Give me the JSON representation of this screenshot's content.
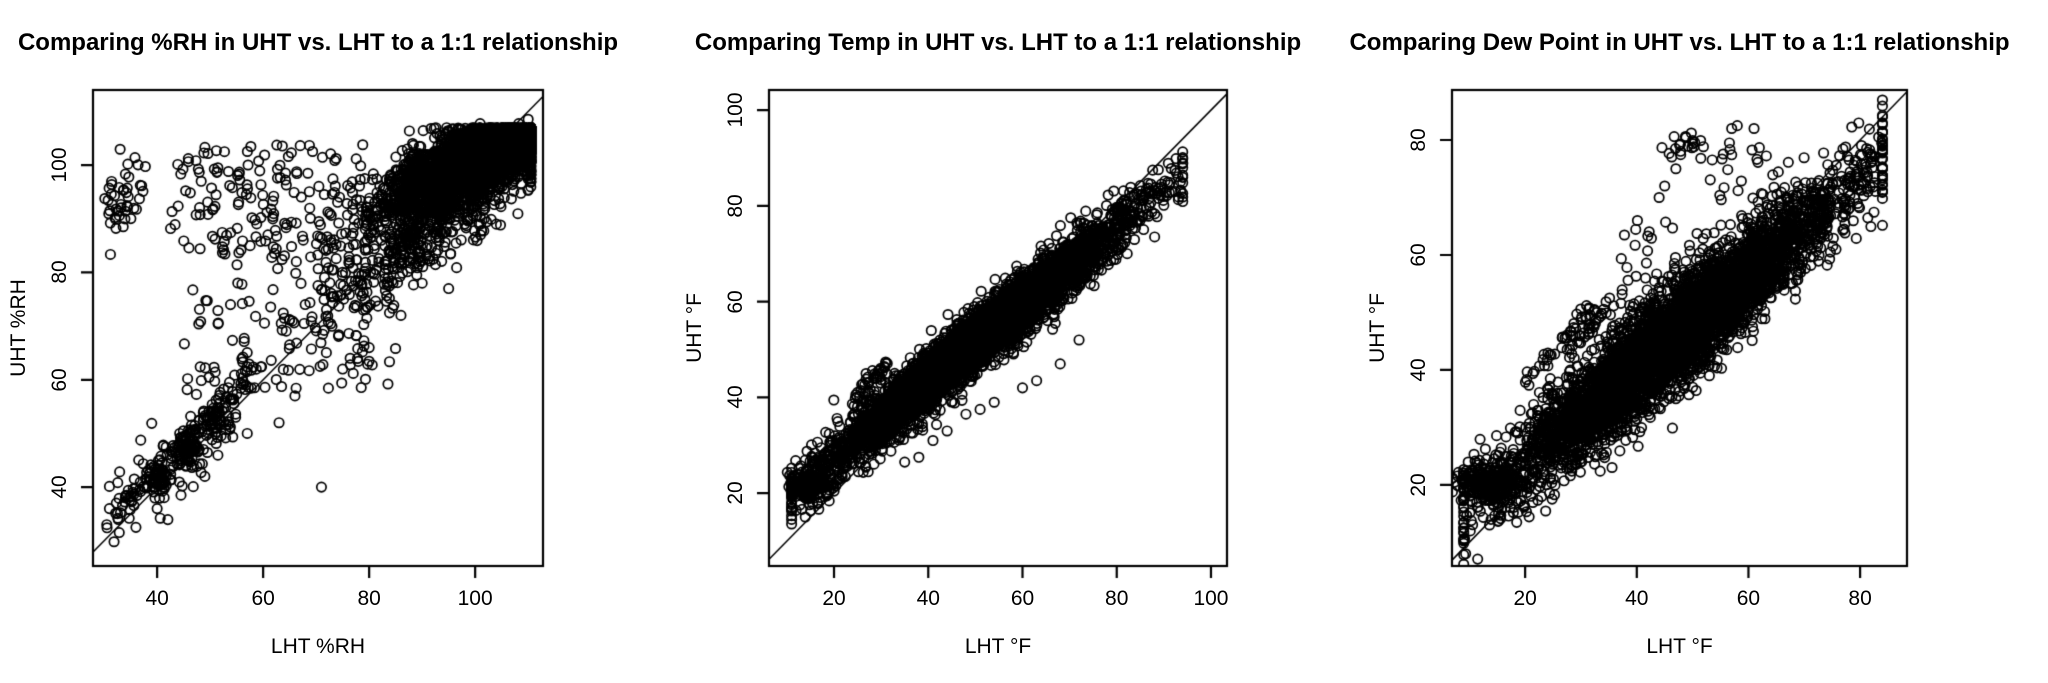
{
  "figure": {
    "background_color": "#ffffff",
    "marker_color": "#000000",
    "axis_color": "#000000",
    "marker_shape": "open-circle"
  },
  "chart_data": [
    {
      "type": "scatter",
      "title": "Comparing %RH in UHT vs. LHT to a 1:1 relationship",
      "xlabel": "LHT %RH",
      "ylabel": "UHT %RH",
      "xlim": [
        27.9,
        112.8
      ],
      "ylim": [
        25.3,
        114.0
      ],
      "xticks": [
        {
          "v": 40,
          "label": "40"
        },
        {
          "v": 60,
          "label": "60"
        },
        {
          "v": 80,
          "label": "80"
        },
        {
          "v": 100,
          "label": "100"
        }
      ],
      "yticks": [
        {
          "v": 40,
          "label": "40"
        },
        {
          "v": 60,
          "label": "60"
        },
        {
          "v": 80,
          "label": "80"
        },
        {
          "v": 100,
          "label": "100"
        }
      ],
      "identity_line": true,
      "grid": false,
      "legend": "none",
      "seed": 11,
      "clusters": [
        {
          "kind": "nband",
          "n": 2600,
          "xmean": 100,
          "xsd": 9,
          "xmin": 62,
          "xmax": 110.5,
          "slope": 0.45,
          "intercept": 56,
          "sd": 3.5,
          "ymax": 107
        },
        {
          "kind": "nband",
          "n": 900,
          "xmean": 103,
          "xsd": 5,
          "xmin": 80,
          "xmax": 110.5,
          "slope": 0.3,
          "intercept": 73,
          "sd": 1.8,
          "ymax": 107
        },
        {
          "kind": "nband",
          "n": 500,
          "xmean": 92,
          "xsd": 10,
          "xmin": 65,
          "xmax": 110,
          "slope": 0.7,
          "intercept": 25,
          "sd": 4.5
        },
        {
          "kind": "uniform",
          "n": 150,
          "x0": 42,
          "x1": 80,
          "y0": 84,
          "y1": 104
        },
        {
          "kind": "uniform",
          "n": 140,
          "x0": 45,
          "x1": 85,
          "y0": 58,
          "y1": 88
        },
        {
          "kind": "gauss",
          "n": 45,
          "cx": 33.5,
          "cy": 94,
          "sx": 2.2,
          "sy": 4
        },
        {
          "kind": "band",
          "n": 90,
          "x0": 32,
          "x1": 58,
          "slope": 1.02,
          "intercept": 2,
          "sd": 1.6
        },
        {
          "kind": "gauss",
          "n": 60,
          "cx": 40.5,
          "cy": 41.5,
          "sx": 1.3,
          "sy": 1.3
        },
        {
          "kind": "gauss",
          "n": 70,
          "cx": 46,
          "cy": 47.5,
          "sx": 1.8,
          "sy": 1.8
        },
        {
          "kind": "gauss",
          "n": 45,
          "cx": 51,
          "cy": 52.5,
          "sx": 1.5,
          "sy": 1.5
        },
        {
          "kind": "band",
          "n": 70,
          "x0": 30,
          "x1": 62,
          "slope": 1,
          "intercept": 3,
          "sd": 5
        },
        {
          "kind": "points",
          "pts": [
            [
              36,
              32.5
            ],
            [
              40,
              36
            ],
            [
              44.5,
              38.5
            ],
            [
              49,
              42
            ],
            [
              57,
              50
            ],
            [
              63,
              52
            ],
            [
              71,
              40
            ],
            [
              66,
              57
            ],
            [
              75,
              62
            ],
            [
              80,
              66
            ],
            [
              86,
              72
            ],
            [
              90,
              78
            ],
            [
              95,
              77
            ],
            [
              101,
              87
            ],
            [
              104,
              89
            ],
            [
              34,
              38
            ],
            [
              31,
              36
            ],
            [
              30.5,
              33
            ]
          ]
        }
      ]
    },
    {
      "type": "scatter",
      "title": "Comparing Temp in UHT vs. LHT to a 1:1 relationship",
      "xlabel": "LHT °F",
      "ylabel": "UHT °F",
      "xlim": [
        6.2,
        103.4
      ],
      "ylim": [
        4.8,
        104.2
      ],
      "xticks": [
        {
          "v": 20,
          "label": "20"
        },
        {
          "v": 40,
          "label": "40"
        },
        {
          "v": 60,
          "label": "60"
        },
        {
          "v": 80,
          "label": "80"
        },
        {
          "v": 100,
          "label": "100"
        }
      ],
      "yticks": [
        {
          "v": 20,
          "label": "20"
        },
        {
          "v": 40,
          "label": "40"
        },
        {
          "v": 60,
          "label": "60"
        },
        {
          "v": 80,
          "label": "80"
        },
        {
          "v": 100,
          "label": "100"
        }
      ],
      "identity_line": true,
      "grid": false,
      "legend": "none",
      "seed": 23,
      "clusters": [
        {
          "kind": "nband",
          "n": 5200,
          "xmean": 50,
          "xsd": 16,
          "xmin": 11,
          "xmax": 94,
          "slope": 0.8,
          "intercept": 11.5,
          "sd": 3
        },
        {
          "kind": "gauss",
          "n": 160,
          "cx": 15,
          "cy": 21.5,
          "sx": 2.3,
          "sy": 1.3
        },
        {
          "kind": "band",
          "n": 35,
          "x0": 24,
          "x1": 31.5,
          "slope": 1.05,
          "intercept": 14.5,
          "sd": 0.9
        },
        {
          "kind": "points",
          "pts": [
            [
              35,
              26.5
            ],
            [
              38,
              27.5
            ],
            [
              48,
              36.5
            ],
            [
              51,
              37.5
            ],
            [
              54,
              39
            ],
            [
              60,
              42
            ],
            [
              63,
              43.5
            ],
            [
              44,
              33
            ],
            [
              41,
              31
            ],
            [
              68,
              47
            ],
            [
              72,
              52
            ]
          ]
        }
      ]
    },
    {
      "type": "scatter",
      "title": "Comparing Dew Point in UHT vs. LHT to a 1:1 relationship",
      "xlabel": "LHT °F",
      "ylabel": "UHT °F",
      "xlim": [
        6.9,
        88.4
      ],
      "ylim": [
        5.9,
        88.7
      ],
      "xticks": [
        {
          "v": 20,
          "label": "20"
        },
        {
          "v": 40,
          "label": "40"
        },
        {
          "v": 60,
          "label": "60"
        },
        {
          "v": 80,
          "label": "80"
        }
      ],
      "yticks": [
        {
          "v": 20,
          "label": "20"
        },
        {
          "v": 40,
          "label": "40"
        },
        {
          "v": 60,
          "label": "60"
        },
        {
          "v": 80,
          "label": "80"
        }
      ],
      "identity_line": true,
      "grid": false,
      "legend": "none",
      "seed": 37,
      "clusters": [
        {
          "kind": "nband",
          "n": 5200,
          "xmean": 47,
          "xsd": 15,
          "xmin": 9,
          "xmax": 84,
          "slope": 0.82,
          "intercept": 7.5,
          "sd": 4.3
        },
        {
          "kind": "gauss",
          "n": 200,
          "cx": 13.5,
          "cy": 20.5,
          "sx": 2.8,
          "sy": 1.6
        },
        {
          "kind": "band",
          "n": 40,
          "x0": 20,
          "x1": 33,
          "slope": 1.05,
          "intercept": 17,
          "sd": 0.9
        },
        {
          "kind": "band",
          "n": 32,
          "x0": 26.5,
          "x1": 38,
          "slope": 1.1,
          "intercept": 12.5,
          "sd": 0.9
        },
        {
          "kind": "gauss",
          "n": 22,
          "cx": 50.5,
          "cy": 78.5,
          "sx": 2.8,
          "sy": 2.6
        },
        {
          "kind": "uniform",
          "n": 22,
          "x0": 53,
          "x1": 66,
          "y0": 68,
          "y1": 79
        },
        {
          "kind": "uniform",
          "n": 26,
          "x0": 37,
          "x1": 52,
          "y0": 54,
          "y1": 66
        },
        {
          "kind": "points",
          "pts": [
            [
              45,
              72
            ],
            [
              47,
              75
            ],
            [
              57,
              82
            ],
            [
              58,
              82.5
            ],
            [
              61,
              82
            ],
            [
              44,
              70
            ],
            [
              40,
              31.5
            ],
            [
              44,
              33.5
            ],
            [
              47,
              35
            ],
            [
              50,
              37
            ],
            [
              53,
              39
            ],
            [
              36,
              29
            ]
          ]
        }
      ]
    }
  ]
}
